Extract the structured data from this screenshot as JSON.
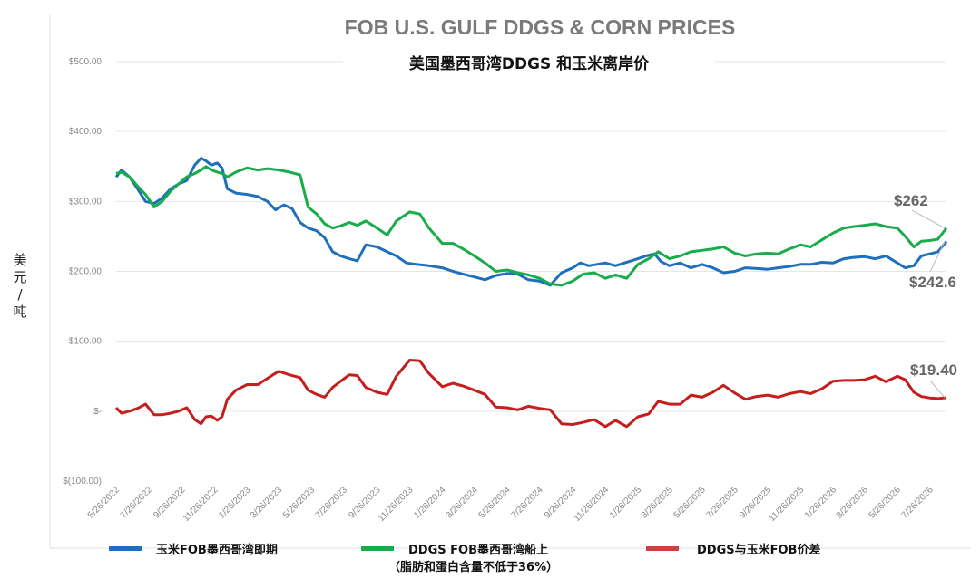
{
  "chart_data": {
    "type": "line",
    "title": "FOB U.S. GULF DDGS & CORN PRICES",
    "subtitle": "美国墨西哥湾DDGS 和玉米离岸价",
    "ylabel": "美元/吨",
    "ylim": [
      -100,
      500
    ],
    "y_ticks": [
      {
        "value": 500,
        "label": "$500.00"
      },
      {
        "value": 400,
        "label": "$400.00"
      },
      {
        "value": 300,
        "label": "$300.00"
      },
      {
        "value": 200,
        "label": "$200.00"
      },
      {
        "value": 100,
        "label": "$100.00"
      },
      {
        "value": 0,
        "label": "$-"
      },
      {
        "value": -100,
        "label": "$(100.00)"
      }
    ],
    "x_start": "2022-05-26",
    "x_end": "2026-08-26",
    "x_ticks": [
      "5/26/2022",
      "7/26/2022",
      "9/26/2022",
      "11/26/2022",
      "1/26/2023",
      "3/26/2023",
      "5/26/2023",
      "7/26/2023",
      "9/26/2023",
      "11/26/2023",
      "1/26/2024",
      "3/26/2024",
      "5/26/2024",
      "7/26/2024",
      "9/26/2024",
      "11/26/2024",
      "1/26/2025",
      "3/26/2025",
      "5/26/2025",
      "7/26/2025",
      "9/26/2025",
      "11/26/2025",
      "1/26/2026",
      "3/26/2026",
      "5/26/2026",
      "7/26/2026"
    ],
    "grid": true,
    "legend_position": "bottom",
    "series": [
      {
        "name": "玉米FOB墨西哥湾即期",
        "color": "#1f6fbf",
        "points": [
          [
            "2022-05-26",
            335
          ],
          [
            "2022-06-05",
            345
          ],
          [
            "2022-06-20",
            335
          ],
          [
            "2022-07-05",
            318
          ],
          [
            "2022-07-20",
            300
          ],
          [
            "2022-08-05",
            297
          ],
          [
            "2022-08-20",
            305
          ],
          [
            "2022-09-05",
            318
          ],
          [
            "2022-09-20",
            325
          ],
          [
            "2022-10-05",
            330
          ],
          [
            "2022-10-20",
            352
          ],
          [
            "2022-11-01",
            362
          ],
          [
            "2022-11-10",
            358
          ],
          [
            "2022-11-20",
            352
          ],
          [
            "2022-12-01",
            355
          ],
          [
            "2022-12-10",
            348
          ],
          [
            "2022-12-20",
            318
          ],
          [
            "2023-01-05",
            312
          ],
          [
            "2023-01-26",
            310
          ],
          [
            "2023-02-15",
            307
          ],
          [
            "2023-03-05",
            300
          ],
          [
            "2023-03-20",
            288
          ],
          [
            "2023-04-05",
            295
          ],
          [
            "2023-04-20",
            290
          ],
          [
            "2023-05-05",
            270
          ],
          [
            "2023-05-20",
            262
          ],
          [
            "2023-06-05",
            258
          ],
          [
            "2023-06-20",
            248
          ],
          [
            "2023-07-05",
            228
          ],
          [
            "2023-07-20",
            222
          ],
          [
            "2023-08-05",
            218
          ],
          [
            "2023-08-20",
            215
          ],
          [
            "2023-09-05",
            238
          ],
          [
            "2023-09-26",
            235
          ],
          [
            "2023-10-15",
            228
          ],
          [
            "2023-11-01",
            222
          ],
          [
            "2023-11-20",
            212
          ],
          [
            "2023-12-10",
            210
          ],
          [
            "2024-01-01",
            208
          ],
          [
            "2024-01-26",
            205
          ],
          [
            "2024-02-15",
            200
          ],
          [
            "2024-03-05",
            196
          ],
          [
            "2024-03-26",
            192
          ],
          [
            "2024-04-15",
            188
          ],
          [
            "2024-05-05",
            194
          ],
          [
            "2024-05-26",
            197
          ],
          [
            "2024-06-15",
            196
          ],
          [
            "2024-07-05",
            188
          ],
          [
            "2024-07-26",
            186
          ],
          [
            "2024-08-15",
            180
          ],
          [
            "2024-09-05",
            198
          ],
          [
            "2024-09-26",
            205
          ],
          [
            "2024-10-10",
            212
          ],
          [
            "2024-10-26",
            208
          ],
          [
            "2024-11-10",
            210
          ],
          [
            "2024-11-26",
            212
          ],
          [
            "2024-12-15",
            208
          ],
          [
            "2025-01-01",
            212
          ],
          [
            "2025-01-26",
            218
          ],
          [
            "2025-02-10",
            222
          ],
          [
            "2025-02-26",
            225
          ],
          [
            "2025-03-10",
            214
          ],
          [
            "2025-03-26",
            208
          ],
          [
            "2025-04-15",
            212
          ],
          [
            "2025-05-05",
            205
          ],
          [
            "2025-05-26",
            210
          ],
          [
            "2025-06-15",
            205
          ],
          [
            "2025-07-05",
            198
          ],
          [
            "2025-07-26",
            200
          ],
          [
            "2025-08-15",
            205
          ],
          [
            "2025-09-05",
            204
          ],
          [
            "2025-09-26",
            203
          ],
          [
            "2025-10-15",
            205
          ],
          [
            "2025-11-05",
            207
          ],
          [
            "2025-11-26",
            210
          ],
          [
            "2025-12-15",
            210
          ],
          [
            "2026-01-05",
            213
          ],
          [
            "2026-01-26",
            212
          ],
          [
            "2026-02-15",
            218
          ],
          [
            "2026-03-05",
            220
          ],
          [
            "2026-03-26",
            221
          ],
          [
            "2026-04-15",
            218
          ],
          [
            "2026-05-05",
            222
          ],
          [
            "2026-05-26",
            212
          ],
          [
            "2026-06-10",
            205
          ],
          [
            "2026-06-26",
            208
          ],
          [
            "2026-07-10",
            222
          ],
          [
            "2026-07-26",
            225
          ],
          [
            "2026-08-10",
            228
          ],
          [
            "2026-08-26",
            242.6
          ]
        ]
      },
      {
        "name": "DDGS FOB墨西哥湾船上（脂肪和蛋白含量不低于36%）",
        "name_line1": "DDGS FOB墨西哥湾船上",
        "name_line2": "（脂肪和蛋白含量不低于36%）",
        "color": "#1aab4b",
        "points": [
          [
            "2022-05-26",
            340
          ],
          [
            "2022-06-05",
            342
          ],
          [
            "2022-06-20",
            335
          ],
          [
            "2022-07-05",
            322
          ],
          [
            "2022-07-20",
            310
          ],
          [
            "2022-08-05",
            292
          ],
          [
            "2022-08-20",
            300
          ],
          [
            "2022-09-05",
            315
          ],
          [
            "2022-09-20",
            325
          ],
          [
            "2022-10-05",
            335
          ],
          [
            "2022-10-20",
            340
          ],
          [
            "2022-11-01",
            345
          ],
          [
            "2022-11-10",
            350
          ],
          [
            "2022-11-20",
            345
          ],
          [
            "2022-12-01",
            342
          ],
          [
            "2022-12-10",
            340
          ],
          [
            "2022-12-20",
            335
          ],
          [
            "2023-01-05",
            342
          ],
          [
            "2023-01-26",
            348
          ],
          [
            "2023-02-15",
            345
          ],
          [
            "2023-03-05",
            347
          ],
          [
            "2023-03-26",
            345
          ],
          [
            "2023-04-15",
            342
          ],
          [
            "2023-05-05",
            338
          ],
          [
            "2023-05-20",
            292
          ],
          [
            "2023-06-05",
            282
          ],
          [
            "2023-06-20",
            268
          ],
          [
            "2023-07-05",
            262
          ],
          [
            "2023-07-20",
            265
          ],
          [
            "2023-08-05",
            270
          ],
          [
            "2023-08-20",
            266
          ],
          [
            "2023-09-05",
            272
          ],
          [
            "2023-09-26",
            262
          ],
          [
            "2023-10-15",
            252
          ],
          [
            "2023-11-01",
            272
          ],
          [
            "2023-11-26",
            285
          ],
          [
            "2023-12-15",
            282
          ],
          [
            "2024-01-01",
            262
          ],
          [
            "2024-01-26",
            240
          ],
          [
            "2024-02-15",
            240
          ],
          [
            "2024-03-05",
            232
          ],
          [
            "2024-03-26",
            222
          ],
          [
            "2024-04-15",
            212
          ],
          [
            "2024-05-05",
            200
          ],
          [
            "2024-05-26",
            202
          ],
          [
            "2024-06-15",
            198
          ],
          [
            "2024-07-05",
            195
          ],
          [
            "2024-07-26",
            190
          ],
          [
            "2024-08-15",
            182
          ],
          [
            "2024-09-05",
            180
          ],
          [
            "2024-09-26",
            186
          ],
          [
            "2024-10-15",
            196
          ],
          [
            "2024-11-05",
            198
          ],
          [
            "2024-11-26",
            190
          ],
          [
            "2024-12-15",
            195
          ],
          [
            "2025-01-05",
            190
          ],
          [
            "2025-01-26",
            210
          ],
          [
            "2025-02-15",
            218
          ],
          [
            "2025-03-05",
            228
          ],
          [
            "2025-03-26",
            218
          ],
          [
            "2025-04-15",
            222
          ],
          [
            "2025-05-05",
            228
          ],
          [
            "2025-05-26",
            230
          ],
          [
            "2025-06-15",
            232
          ],
          [
            "2025-07-05",
            235
          ],
          [
            "2025-07-26",
            226
          ],
          [
            "2025-08-15",
            222
          ],
          [
            "2025-09-05",
            225
          ],
          [
            "2025-09-26",
            226
          ],
          [
            "2025-10-15",
            225
          ],
          [
            "2025-11-05",
            232
          ],
          [
            "2025-11-26",
            238
          ],
          [
            "2025-12-15",
            235
          ],
          [
            "2026-01-05",
            245
          ],
          [
            "2026-01-26",
            255
          ],
          [
            "2026-02-15",
            262
          ],
          [
            "2026-03-05",
            264
          ],
          [
            "2026-03-26",
            266
          ],
          [
            "2026-04-15",
            268
          ],
          [
            "2026-05-05",
            264
          ],
          [
            "2026-05-26",
            262
          ],
          [
            "2026-06-10",
            250
          ],
          [
            "2026-06-26",
            235
          ],
          [
            "2026-07-10",
            243
          ],
          [
            "2026-07-26",
            244
          ],
          [
            "2026-08-10",
            246
          ],
          [
            "2026-08-26",
            262
          ]
        ]
      },
      {
        "name": "DDGS与玉米FOB价差",
        "color": "#c41e1e",
        "points": [
          [
            "2022-05-26",
            5
          ],
          [
            "2022-06-05",
            -3
          ],
          [
            "2022-06-20",
            0
          ],
          [
            "2022-07-05",
            4
          ],
          [
            "2022-07-20",
            10
          ],
          [
            "2022-08-05",
            -5
          ],
          [
            "2022-08-20",
            -5
          ],
          [
            "2022-09-05",
            -3
          ],
          [
            "2022-09-20",
            0
          ],
          [
            "2022-10-05",
            5
          ],
          [
            "2022-10-20",
            -12
          ],
          [
            "2022-11-01",
            -18
          ],
          [
            "2022-11-10",
            -8
          ],
          [
            "2022-11-20",
            -7
          ],
          [
            "2022-12-01",
            -13
          ],
          [
            "2022-12-10",
            -8
          ],
          [
            "2022-12-20",
            17
          ],
          [
            "2023-01-05",
            30
          ],
          [
            "2023-01-26",
            38
          ],
          [
            "2023-02-15",
            38
          ],
          [
            "2023-03-05",
            47
          ],
          [
            "2023-03-26",
            57
          ],
          [
            "2023-04-15",
            52
          ],
          [
            "2023-05-05",
            48
          ],
          [
            "2023-05-20",
            30
          ],
          [
            "2023-06-05",
            24
          ],
          [
            "2023-06-20",
            20
          ],
          [
            "2023-07-05",
            34
          ],
          [
            "2023-07-20",
            43
          ],
          [
            "2023-08-05",
            52
          ],
          [
            "2023-08-20",
            51
          ],
          [
            "2023-09-05",
            34
          ],
          [
            "2023-09-26",
            27
          ],
          [
            "2023-10-15",
            24
          ],
          [
            "2023-11-01",
            50
          ],
          [
            "2023-11-26",
            73
          ],
          [
            "2023-12-15",
            72
          ],
          [
            "2024-01-01",
            54
          ],
          [
            "2024-01-26",
            35
          ],
          [
            "2024-02-15",
            40
          ],
          [
            "2024-03-05",
            36
          ],
          [
            "2024-03-26",
            30
          ],
          [
            "2024-04-15",
            24
          ],
          [
            "2024-05-05",
            6
          ],
          [
            "2024-05-26",
            5
          ],
          [
            "2024-06-15",
            2
          ],
          [
            "2024-07-05",
            7
          ],
          [
            "2024-07-26",
            4
          ],
          [
            "2024-08-15",
            2
          ],
          [
            "2024-09-05",
            -18
          ],
          [
            "2024-09-26",
            -19
          ],
          [
            "2024-10-15",
            -16
          ],
          [
            "2024-11-05",
            -12
          ],
          [
            "2024-11-26",
            -22
          ],
          [
            "2024-12-15",
            -13
          ],
          [
            "2025-01-05",
            -22
          ],
          [
            "2025-01-26",
            -8
          ],
          [
            "2025-02-15",
            -4
          ],
          [
            "2025-03-05",
            14
          ],
          [
            "2025-03-26",
            10
          ],
          [
            "2025-04-15",
            10
          ],
          [
            "2025-05-05",
            23
          ],
          [
            "2025-05-26",
            20
          ],
          [
            "2025-06-15",
            27
          ],
          [
            "2025-07-05",
            37
          ],
          [
            "2025-07-26",
            26
          ],
          [
            "2025-08-15",
            17
          ],
          [
            "2025-09-05",
            21
          ],
          [
            "2025-09-26",
            23
          ],
          [
            "2025-10-15",
            20
          ],
          [
            "2025-11-05",
            25
          ],
          [
            "2025-11-26",
            28
          ],
          [
            "2025-12-15",
            25
          ],
          [
            "2026-01-05",
            32
          ],
          [
            "2026-01-26",
            43
          ],
          [
            "2026-02-15",
            44
          ],
          [
            "2026-03-05",
            44
          ],
          [
            "2026-03-26",
            45
          ],
          [
            "2026-04-15",
            50
          ],
          [
            "2026-05-05",
            42
          ],
          [
            "2026-05-26",
            50
          ],
          [
            "2026-06-10",
            45
          ],
          [
            "2026-06-26",
            27
          ],
          [
            "2026-07-10",
            21
          ],
          [
            "2026-07-26",
            19
          ],
          [
            "2026-08-10",
            18
          ],
          [
            "2026-08-26",
            19.4
          ]
        ]
      }
    ],
    "annotations": [
      {
        "text": "$262",
        "series": 1
      },
      {
        "text": "$242.6",
        "series": 0
      },
      {
        "text": "$19.40",
        "series": 2
      }
    ]
  }
}
